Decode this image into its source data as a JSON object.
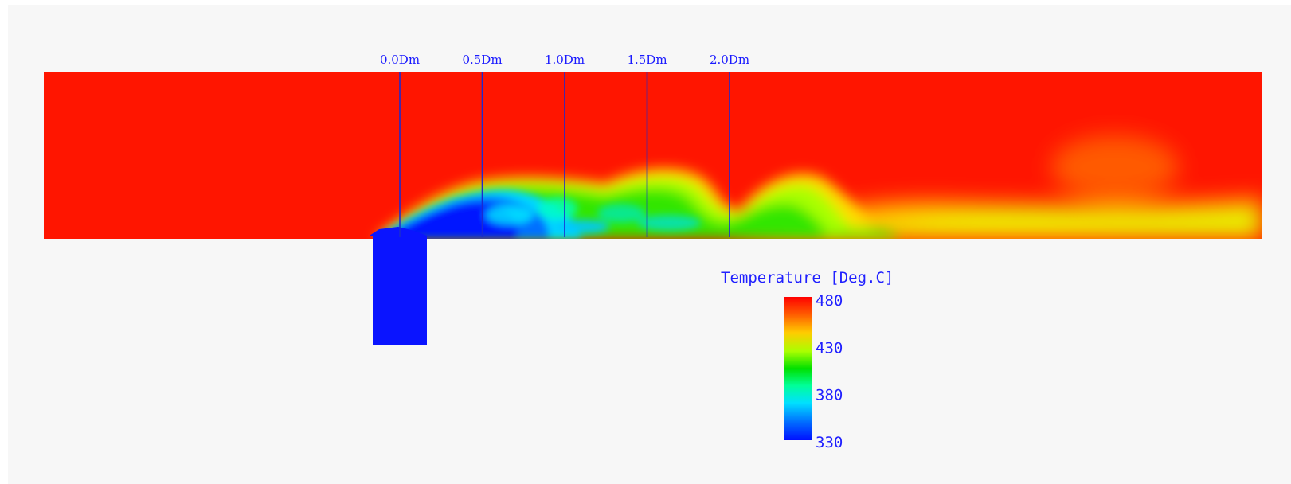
{
  "figure": {
    "stations": [
      {
        "label": "0.0Dm"
      },
      {
        "label": "0.5Dm"
      },
      {
        "label": "1.0Dm"
      },
      {
        "label": "1.5Dm"
      },
      {
        "label": "2.0Dm"
      }
    ],
    "legend": {
      "title": "Temperature [Deg.C]",
      "ticks": [
        "480",
        "430",
        "380",
        "330"
      ],
      "max": 480,
      "min": 330
    },
    "colors": {
      "background": "#f7f7f7",
      "hot": "#ff1500",
      "jet": "#0a14ff",
      "station_line": "#1a2ad0",
      "text": "#1a1aff"
    }
  }
}
